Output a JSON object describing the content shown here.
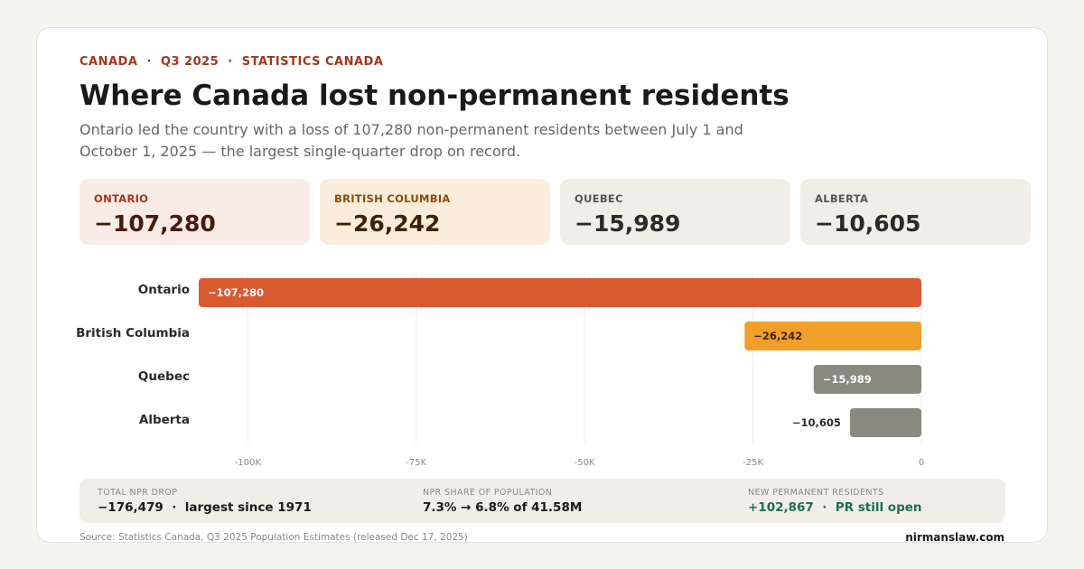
{
  "header": {
    "eyebrow": "CANADA  ·  Q3 2025  ·  STATISTICS CANADA",
    "title": "Where Canada lost non-permanent residents",
    "subtitle": "Ontario led the country with a loss of 107,280 non-permanent residents between July 1 and October 1, 2025 — the largest single-quarter drop on record."
  },
  "stats": [
    {
      "label": "ONTARIO",
      "value": "−107,280",
      "bg": "#f9ebe6",
      "label_color": "#a3361c",
      "value_color": "#4a1a0c"
    },
    {
      "label": "BRITISH COLUMBIA",
      "value": "−26,242",
      "bg": "#faeddb",
      "label_color": "#8a4a0a",
      "value_color": "#3d2306"
    },
    {
      "label": "QUEBEC",
      "value": "−15,989",
      "bg": "#f1eee7",
      "label_color": "#555",
      "value_color": "#2a2a2a"
    },
    {
      "label": "ALBERTA",
      "value": "−10,605",
      "bg": "#f1eee7",
      "label_color": "#555",
      "value_color": "#2a2a2a"
    }
  ],
  "chart_data": {
    "type": "bar",
    "orientation": "horizontal",
    "categories": [
      "Ontario",
      "British Columbia",
      "Quebec",
      "Alberta"
    ],
    "values": [
      -107280,
      -26242,
      -15989,
      -10605
    ],
    "data_labels": [
      "−107,280",
      "−26,242",
      "−15,989",
      "−10,605"
    ],
    "colors": [
      "#d95a30",
      "#f0a028",
      "#8a8980",
      "#8a8980"
    ],
    "xlim": [
      -107280,
      0
    ],
    "xticks": [
      -100000,
      -75000,
      -50000,
      -25000,
      0
    ],
    "xtick_labels": [
      "-100K",
      "-75K",
      "-50K",
      "-25K",
      "0"
    ],
    "grid": true
  },
  "footer": {
    "items": [
      {
        "label": "TOTAL NPR DROP",
        "value": "−176,479  ·  largest since 1971",
        "color": "#1a1a1a"
      },
      {
        "label": "NPR SHARE OF POPULATION",
        "value": "7.3% → 6.8% of 41.58M",
        "color": "#1a1a1a"
      },
      {
        "label": "NEW PERMANENT RESIDENTS",
        "value": "+102,867  ·  PR still open",
        "color": "#1a7050"
      }
    ],
    "source": "Source: Statistics Canada, Q3 2025 Population Estimates (released Dec 17, 2025)",
    "brand": "nirmanslaw.com"
  }
}
